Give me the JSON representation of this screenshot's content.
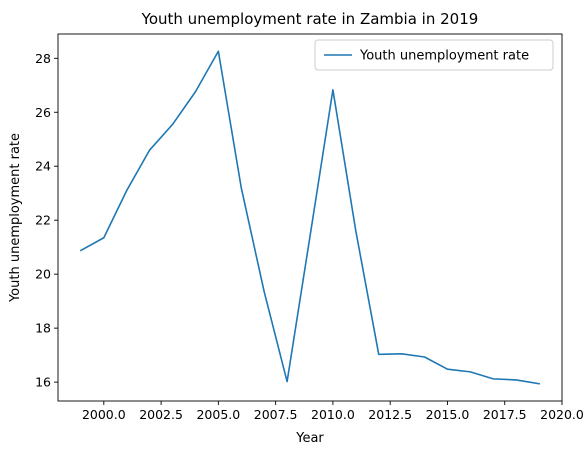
{
  "chart_data": {
    "type": "line",
    "title": "Youth unemployment rate in Zambia in 2019",
    "xlabel": "Year",
    "ylabel": "Youth unemployment rate",
    "xlim": [
      1998.0,
      2020.0
    ],
    "ylim": [
      15.3,
      28.9
    ],
    "x_ticks": [
      2000.0,
      2002.5,
      2005.0,
      2007.5,
      2010.0,
      2012.5,
      2015.0,
      2017.5,
      2020.0
    ],
    "x_tick_labels": [
      "2000.0",
      "2002.5",
      "2005.0",
      "2007.5",
      "2010.0",
      "2012.5",
      "2015.0",
      "2017.5",
      "2020.0"
    ],
    "y_ticks": [
      16,
      18,
      20,
      22,
      24,
      26,
      28
    ],
    "y_tick_labels": [
      "16",
      "18",
      "20",
      "22",
      "24",
      "26",
      "28"
    ],
    "grid": false,
    "legend_position": "top-right",
    "series": [
      {
        "name": "Youth unemployment rate",
        "color": "#1f77b4",
        "x": [
          1999,
          2000,
          2001,
          2002,
          2003,
          2004,
          2005,
          2006,
          2007,
          2008,
          2009,
          2010,
          2011,
          2012,
          2013,
          2014,
          2015,
          2016,
          2017,
          2018,
          2019
        ],
        "y": [
          20.88,
          21.35,
          23.1,
          24.6,
          25.55,
          26.76,
          28.26,
          23.2,
          19.35,
          16.02,
          21.4,
          26.83,
          21.6,
          17.03,
          17.05,
          16.93,
          16.48,
          16.38,
          16.12,
          16.08,
          15.94
        ]
      }
    ]
  }
}
